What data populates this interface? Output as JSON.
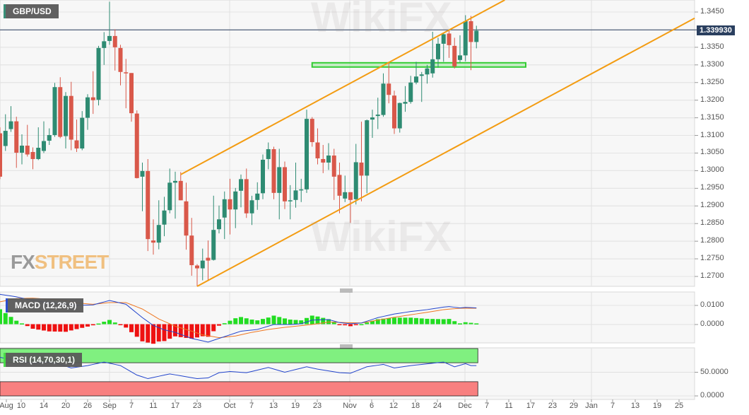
{
  "symbol_label": "GBP/USD",
  "watermark": "WikiFX",
  "logo": {
    "fx": "FX",
    "street": "STREET"
  },
  "current_price": "1.339930",
  "colors": {
    "up": "#2e8b72",
    "down": "#d9584a",
    "channel": "#f39c12",
    "zone": "#33cc33",
    "macd": "#2244cc",
    "signal": "#ee7722",
    "rsi": "#2244cc",
    "rsi_overbought": "#80f080",
    "rsi_oversold": "#f88080",
    "price_tag": "#2a3f5f"
  },
  "chart_data": [
    {
      "type": "candlestick",
      "title": "GBP/USD",
      "ylim": [
        1.2665,
        1.3485
      ],
      "y_ticks": [
        "1.3450",
        "1.3350",
        "1.3300",
        "1.3250",
        "1.3200",
        "1.3150",
        "1.3100",
        "1.3050",
        "1.3000",
        "1.2950",
        "1.2900",
        "1.2850",
        "1.2800",
        "1.2750",
        "1.2700"
      ],
      "x_ticks": [
        "Aug",
        "10",
        "14",
        "20",
        "26",
        "Sep",
        "7",
        "11",
        "17",
        "23",
        "Oct",
        "7",
        "13",
        "19",
        "23",
        "Nov",
        "6",
        "12",
        "18",
        "24",
        "Dec",
        "7",
        "11",
        "17",
        "23",
        "29",
        "Jan",
        "7",
        "13",
        "19",
        "25"
      ],
      "grid": true,
      "candles_columns": [
        "date",
        "open",
        "high",
        "low",
        "close"
      ],
      "candles": [
        [
          "Aug 4",
          1.3106,
          1.3123,
          1.2976,
          1.2983
        ],
        [
          "Aug 5",
          1.307,
          1.316,
          1.3056,
          1.3113
        ],
        [
          "Aug 6",
          1.3118,
          1.3183,
          1.311,
          1.314
        ],
        [
          "Aug 7",
          1.314,
          1.3153,
          1.3008,
          1.3051
        ],
        [
          "Aug 10",
          1.3051,
          1.3103,
          1.3018,
          1.3071
        ],
        [
          "Aug 11",
          1.3071,
          1.313,
          1.304,
          1.3046
        ],
        [
          "Aug 12",
          1.3053,
          1.3066,
          1.3004,
          1.3033
        ],
        [
          "Aug 13",
          1.3033,
          1.3123,
          1.303,
          1.3065
        ],
        [
          "Aug 14",
          1.3056,
          1.314,
          1.305,
          1.3084
        ],
        [
          "Aug 17",
          1.3085,
          1.312,
          1.3073,
          1.3101
        ],
        [
          "Aug 18",
          1.3101,
          1.3249,
          1.3096,
          1.3237
        ],
        [
          "Aug 19",
          1.3237,
          1.3265,
          1.3092,
          1.3096
        ],
        [
          "Aug 20",
          1.3098,
          1.3223,
          1.3063,
          1.3212
        ],
        [
          "Aug 21",
          1.3212,
          1.3252,
          1.3058,
          1.3088
        ],
        [
          "Aug 24",
          1.3086,
          1.3145,
          1.3053,
          1.3063
        ],
        [
          "Aug 25",
          1.3063,
          1.3169,
          1.3058,
          1.315
        ],
        [
          "Aug 26",
          1.315,
          1.3217,
          1.3116,
          1.3208
        ],
        [
          "Aug 27",
          1.3208,
          1.3282,
          1.3161,
          1.32
        ],
        [
          "Aug 28",
          1.3201,
          1.3354,
          1.3185,
          1.3348
        ],
        [
          "Aug 31",
          1.3348,
          1.3393,
          1.33,
          1.3367
        ],
        [
          "Sep 1",
          1.3368,
          1.3479,
          1.3357,
          1.3382
        ],
        [
          "Sep 2",
          1.3382,
          1.3401,
          1.3284,
          1.335
        ],
        [
          "Sep 3",
          1.3348,
          1.3357,
          1.3242,
          1.328
        ],
        [
          "Sep 4",
          1.3279,
          1.3317,
          1.3177,
          1.3277
        ],
        [
          "Sep 7",
          1.3277,
          1.3277,
          1.3139,
          1.3163
        ],
        [
          "Sep 8",
          1.3162,
          1.3171,
          1.2978,
          1.2979
        ],
        [
          "Sep 9",
          1.2983,
          1.3023,
          1.2885,
          1.2999
        ],
        [
          "Sep 10",
          1.2999,
          1.3033,
          1.2772,
          1.2806
        ],
        [
          "Sep 11",
          1.2802,
          1.2862,
          1.2762,
          1.2796
        ],
        [
          "Sep 14",
          1.2796,
          1.2916,
          1.2777,
          1.2846
        ],
        [
          "Sep 15",
          1.2847,
          1.2926,
          1.2814,
          1.2887
        ],
        [
          "Sep 16",
          1.2888,
          1.3006,
          1.2879,
          1.2966
        ],
        [
          "Sep 17",
          1.2966,
          1.2997,
          1.2864,
          1.2971
        ],
        [
          "Sep 18",
          1.2971,
          1.2996,
          1.2916,
          1.2916
        ],
        [
          "Sep 21",
          1.2913,
          1.2966,
          1.2776,
          1.2816
        ],
        [
          "Sep 22",
          1.2816,
          1.2866,
          1.2702,
          1.2732
        ],
        [
          "Sep 23",
          1.2731,
          1.2735,
          1.2672,
          1.2723
        ],
        [
          "Sep 24",
          1.2723,
          1.2779,
          1.2689,
          1.2745
        ],
        [
          "Sep 25",
          1.2753,
          1.2802,
          1.2687,
          1.2745
        ],
        [
          "Sep 28",
          1.2747,
          1.2929,
          1.2745,
          1.2832
        ],
        [
          "Sep 29",
          1.2834,
          1.2901,
          1.2822,
          1.2862
        ],
        [
          "Sep 30",
          1.2867,
          1.2941,
          1.2806,
          1.2919
        ],
        [
          "Oct 1",
          1.2919,
          1.2977,
          1.2819,
          1.289
        ],
        [
          "Oct 2",
          1.289,
          1.2951,
          1.2837,
          1.2941
        ],
        [
          "Oct 5",
          1.2943,
          1.2989,
          1.2896,
          1.2976
        ],
        [
          "Oct 6",
          1.2976,
          1.3006,
          1.2866,
          1.2879
        ],
        [
          "Oct 7",
          1.2879,
          1.2929,
          1.2846,
          1.2916
        ],
        [
          "Oct 8",
          1.2917,
          1.2967,
          1.2889,
          1.2935
        ],
        [
          "Oct 9",
          1.2936,
          1.3046,
          1.2919,
          1.3031
        ],
        [
          "Oct 12",
          1.3033,
          1.308,
          1.3004,
          1.3061
        ],
        [
          "Oct 13",
          1.3061,
          1.3068,
          1.2919,
          1.2937
        ],
        [
          "Oct 14",
          1.2937,
          1.3062,
          1.2862,
          1.301
        ],
        [
          "Oct 15",
          1.301,
          1.3026,
          1.2891,
          1.2913
        ],
        [
          "Oct 16",
          1.2913,
          1.2959,
          1.2862,
          1.2916
        ],
        [
          "Oct 19",
          1.2917,
          1.3023,
          1.2895,
          1.2944
        ],
        [
          "Oct 20",
          1.2945,
          1.2977,
          1.2911,
          1.2947
        ],
        [
          "Oct 21",
          1.2947,
          1.3173,
          1.2937,
          1.3147
        ],
        [
          "Oct 22",
          1.3147,
          1.3152,
          1.3068,
          1.3081
        ],
        [
          "Oct 23",
          1.308,
          1.312,
          1.3018,
          1.3035
        ],
        [
          "Oct 26",
          1.3033,
          1.3073,
          1.2993,
          1.3023
        ],
        [
          "Oct 27",
          1.3023,
          1.3078,
          1.3002,
          1.3043
        ],
        [
          "Oct 28",
          1.3043,
          1.3062,
          1.2917,
          1.2983
        ],
        [
          "Oct 29",
          1.2988,
          1.3023,
          1.2879,
          1.2929
        ],
        [
          "Oct 30",
          1.2921,
          1.2986,
          1.2911,
          1.2939
        ],
        [
          "Nov 2",
          1.2939,
          1.2939,
          1.2852,
          1.2917
        ],
        [
          "Nov 3",
          1.2919,
          1.3076,
          1.2904,
          1.3024
        ],
        [
          "Nov 4",
          1.3023,
          1.3139,
          1.2913,
          1.2986
        ],
        [
          "Nov 5",
          1.2986,
          1.3145,
          1.2936,
          1.3143
        ],
        [
          "Nov 6",
          1.3145,
          1.3173,
          1.3093,
          1.3151
        ],
        [
          "Nov 9",
          1.3155,
          1.3207,
          1.3118,
          1.3159
        ],
        [
          "Nov 10",
          1.3158,
          1.3276,
          1.3153,
          1.3247
        ],
        [
          "Nov 11",
          1.3247,
          1.3309,
          1.3191,
          1.3215
        ],
        [
          "Nov 12",
          1.3213,
          1.3227,
          1.3104,
          1.312
        ],
        [
          "Nov 13",
          1.312,
          1.3193,
          1.3108,
          1.3192
        ],
        [
          "Nov 16",
          1.319,
          1.324,
          1.3167,
          1.3195
        ],
        [
          "Nov 17",
          1.3195,
          1.3269,
          1.319,
          1.325
        ],
        [
          "Nov 18",
          1.325,
          1.3309,
          1.3245,
          1.3267
        ],
        [
          "Nov 19",
          1.3269,
          1.328,
          1.3195,
          1.3273
        ],
        [
          "Nov 20",
          1.3273,
          1.33,
          1.3247,
          1.329
        ],
        [
          "Nov 23",
          1.3276,
          1.3394,
          1.3264,
          1.3316
        ],
        [
          "Nov 24",
          1.3316,
          1.3377,
          1.3292,
          1.336
        ],
        [
          "Nov 25",
          1.336,
          1.3391,
          1.3309,
          1.3387
        ],
        [
          "Nov 26",
          1.3389,
          1.3397,
          1.332,
          1.3356
        ],
        [
          "Nov 27",
          1.3354,
          1.3377,
          1.329,
          1.3296
        ],
        [
          "Nov 30",
          1.3314,
          1.3384,
          1.3307,
          1.3327
        ],
        [
          "Dec 1",
          1.3327,
          1.3441,
          1.331,
          1.3424
        ],
        [
          "Dec 2",
          1.3424,
          1.3439,
          1.3285,
          1.3365
        ],
        [
          "Dec 3",
          1.3365,
          1.3411,
          1.3347,
          1.3397
        ]
      ],
      "current_price_line": 1.33993,
      "channel_upper": {
        "points": [
          [
            "Sep 18",
            1.2989
          ],
          [
            "Dec 1",
            1.3424
          ]
        ],
        "extend": "right"
      },
      "channel_lower": {
        "points": [
          [
            "Sep 23",
            1.2672
          ],
          [
            "Dec 3",
            1.3099
          ]
        ],
        "extend": "right"
      },
      "support_zone": {
        "from": "Oct 22",
        "to": "Dec 16",
        "low": 1.3294,
        "high": 1.3306
      }
    },
    {
      "type": "line",
      "title": "MACD (12,26,9)",
      "ylim": [
        -0.0096,
        0.017
      ],
      "y_ticks": [
        "0.0100",
        "0.0000"
      ],
      "series": [
        {
          "values": [
            [
              "Aug 4",
              0.0158
            ],
            [
              "Aug 7",
              0.0145
            ],
            [
              "Aug 12",
              0.0126
            ],
            [
              "Aug 17",
              0.0113
            ],
            [
              "Aug 20",
              0.0106
            ],
            [
              "Aug 24",
              0.01
            ],
            [
              "Aug 27",
              0.0103
            ],
            [
              "Sep 1",
              0.0126
            ],
            [
              "Sep 4",
              0.0106
            ],
            [
              "Sep 9",
              0.0036
            ],
            [
              "Sep 11",
              -0.0005
            ],
            [
              "Sep 15",
              -0.0028
            ],
            [
              "Sep 17",
              -0.0041
            ],
            [
              "Sep 22",
              -0.0073
            ],
            [
              "Sep 25",
              -0.0092
            ],
            [
              "Sep 29",
              -0.0073
            ],
            [
              "Oct 1",
              -0.0054
            ],
            [
              "Oct 5",
              -0.0035
            ],
            [
              "Oct 8",
              -0.0026
            ],
            [
              "Oct 13",
              0.0
            ],
            [
              "Oct 16",
              0.0
            ],
            [
              "Oct 20",
              0.0004
            ],
            [
              "Oct 22",
              0.0023
            ],
            [
              "Oct 27",
              0.0026
            ],
            [
              "Oct 29",
              0.001
            ],
            [
              "Nov 2",
              0.0004
            ],
            [
              "Nov 4",
              0.0008
            ],
            [
              "Nov 9",
              0.0036
            ],
            [
              "Nov 12",
              0.0055
            ],
            [
              "Nov 17",
              0.0068
            ],
            [
              "Nov 20",
              0.0078
            ],
            [
              "Nov 25",
              0.0091
            ],
            [
              "Nov 26",
              0.0094
            ],
            [
              "Nov 30",
              0.0087
            ],
            [
              "Dec 1",
              0.009
            ],
            [
              "Dec 3",
              0.0087
            ]
          ]
        },
        {
          "values": [
            [
              "Aug 4",
              0.0119
            ],
            [
              "Aug 7",
              0.0136
            ],
            [
              "Aug 12",
              0.0138
            ],
            [
              "Aug 17",
              0.0132
            ],
            [
              "Aug 20",
              0.0126
            ],
            [
              "Aug 24",
              0.0113
            ],
            [
              "Aug 27",
              0.0106
            ],
            [
              "Sep 1",
              0.0115
            ],
            [
              "Sep 4",
              0.0115
            ],
            [
              "Sep 9",
              0.0081
            ],
            [
              "Sep 14",
              0.0029
            ],
            [
              "Sep 17",
              -0.0009
            ],
            [
              "Sep 22",
              -0.0035
            ],
            [
              "Sep 24",
              -0.0054
            ],
            [
              "Sep 29",
              -0.0069
            ],
            [
              "Oct 2",
              -0.006
            ],
            [
              "Oct 7",
              -0.0041
            ],
            [
              "Oct 12",
              -0.0026
            ],
            [
              "Oct 15",
              -0.0015
            ],
            [
              "Oct 20",
              -0.0006
            ],
            [
              "Oct 23",
              0.0004
            ],
            [
              "Oct 27",
              0.0013
            ],
            [
              "Oct 30",
              0.001
            ],
            [
              "Nov 4",
              0.0008
            ],
            [
              "Nov 9",
              0.0023
            ],
            [
              "Nov 12",
              0.0038
            ],
            [
              "Nov 17",
              0.0051
            ],
            [
              "Nov 20",
              0.0064
            ],
            [
              "Nov 25",
              0.0078
            ],
            [
              "Nov 30",
              0.0085
            ],
            [
              "Dec 3",
              0.0085
            ]
          ]
        }
      ],
      "histogram": "macd minus signal"
    },
    {
      "type": "line",
      "title": "RSI (14,70,30,1)",
      "ylim": [
        0,
        100
      ],
      "y_ticks": [
        "50.0000",
        "0.0000"
      ],
      "bands": {
        "overbought": 70,
        "oversold": 30
      },
      "series": [
        {
          "values": [
            [
              "Aug 4",
              81.5
            ],
            [
              "Aug 6",
              76.5
            ],
            [
              "Aug 12",
              69
            ],
            [
              "Aug 17",
              71.5
            ],
            [
              "Aug 19",
              66.5
            ],
            [
              "Aug 21",
              59
            ],
            [
              "Aug 26",
              64
            ],
            [
              "Aug 31",
              71.5
            ],
            [
              "Sep 3",
              64
            ],
            [
              "Sep 8",
              44
            ],
            [
              "Sep 10",
              36.5
            ],
            [
              "Sep 16",
              46.5
            ],
            [
              "Sep 23",
              36.5
            ],
            [
              "Sep 25",
              38
            ],
            [
              "Sep 29",
              49
            ],
            [
              "Oct 1",
              51.5
            ],
            [
              "Oct 6",
              49
            ],
            [
              "Oct 12",
              60
            ],
            [
              "Oct 15",
              50
            ],
            [
              "Oct 21",
              61.5
            ],
            [
              "Oct 23",
              56.5
            ],
            [
              "Oct 29",
              49
            ],
            [
              "Nov 2",
              48
            ],
            [
              "Nov 5",
              61.5
            ],
            [
              "Nov 10",
              66.5
            ],
            [
              "Nov 12",
              59
            ],
            [
              "Nov 17",
              64
            ],
            [
              "Nov 25",
              71.5
            ],
            [
              "Nov 27",
              61.5
            ],
            [
              "Dec 1",
              68
            ],
            [
              "Dec 2",
              64
            ],
            [
              "Dec 3",
              64
            ]
          ]
        }
      ]
    }
  ]
}
